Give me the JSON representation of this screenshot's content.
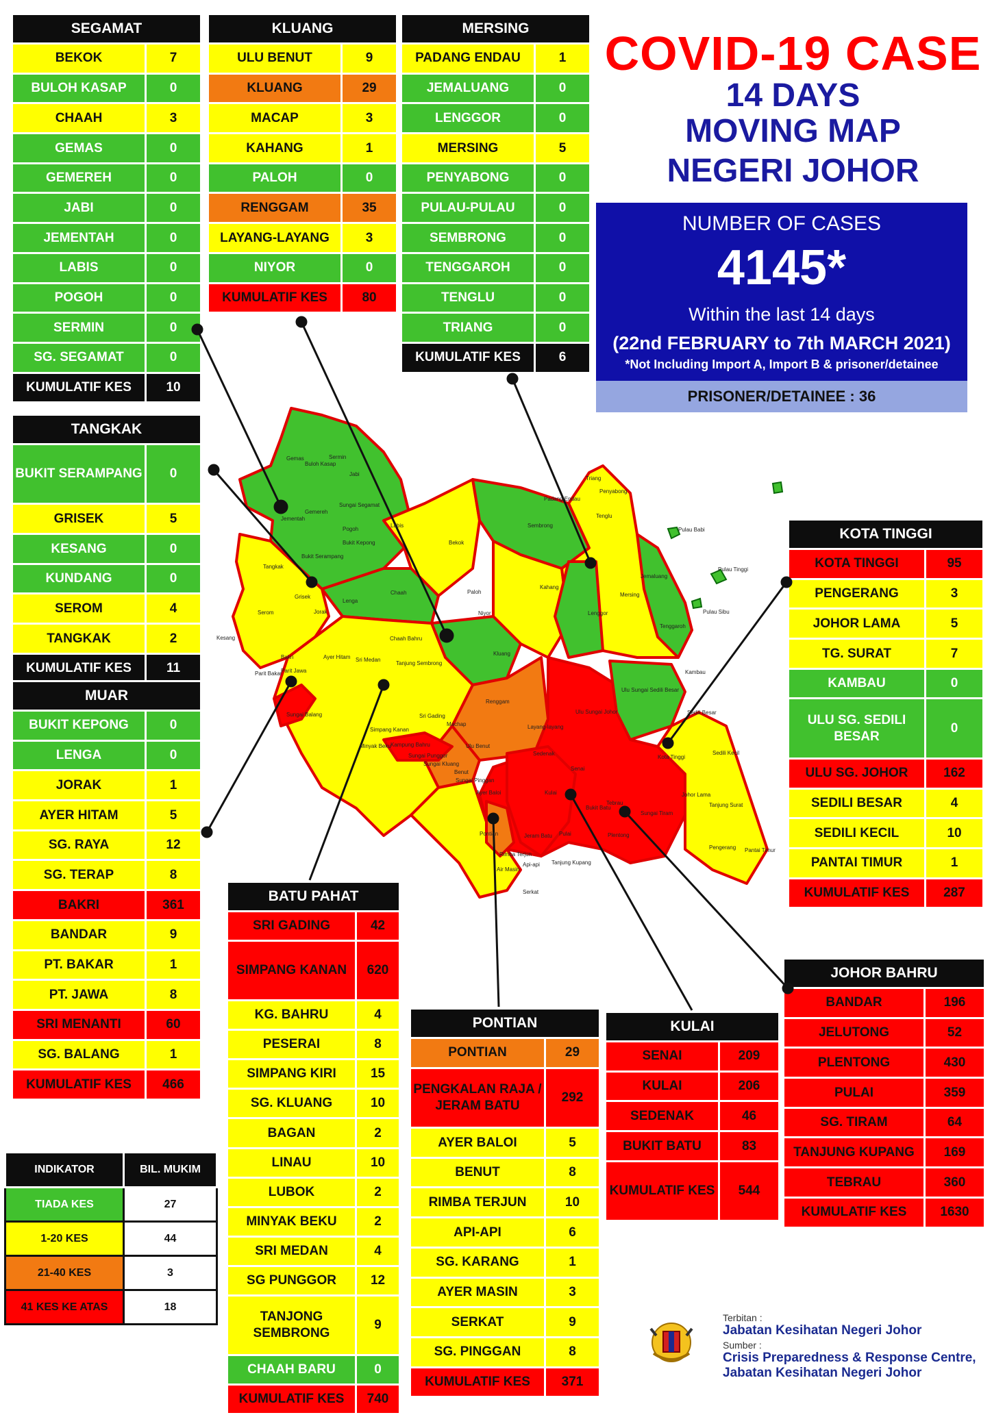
{
  "title": {
    "line1": "COVID-19 CASE",
    "line2": "14 DAYS",
    "line3": "MOVING MAP",
    "line4": "NEGERI JOHOR"
  },
  "summary": {
    "label": "NUMBER OF CASES",
    "total": "4145*",
    "period": "Within the last 14 days",
    "range": "(22nd FEBRUARY to 7th MARCH 2021)",
    "note": "*Not Including Import A, Import B & prisoner/detainee",
    "prisoner": "PRISONER/DETAINEE : 36"
  },
  "colors": {
    "green": "#41c12e",
    "yellow": "#ffff00",
    "orange": "#f27a12",
    "red": "#ff0000",
    "blue": "#1010a8"
  },
  "districts": {
    "segamat": {
      "name": "SEGAMAT",
      "rows": [
        {
          "n": "BEKOK",
          "v": "7",
          "c": "y"
        },
        {
          "n": "BULOH KASAP",
          "v": "0",
          "c": "g"
        },
        {
          "n": "CHAAH",
          "v": "3",
          "c": "y"
        },
        {
          "n": "GEMAS",
          "v": "0",
          "c": "g"
        },
        {
          "n": "GEMEREH",
          "v": "0",
          "c": "g"
        },
        {
          "n": "JABI",
          "v": "0",
          "c": "g"
        },
        {
          "n": "JEMENTAH",
          "v": "0",
          "c": "g"
        },
        {
          "n": "LABIS",
          "v": "0",
          "c": "g"
        },
        {
          "n": "POGOH",
          "v": "0",
          "c": "g"
        },
        {
          "n": "SERMIN",
          "v": "0",
          "c": "g"
        },
        {
          "n": "SG. SEGAMAT",
          "v": "0",
          "c": "g"
        },
        {
          "n": "KUMULATIF KES",
          "v": "10",
          "c": "k"
        }
      ]
    },
    "kluang": {
      "name": "KLUANG",
      "rows": [
        {
          "n": "ULU BENUT",
          "v": "9",
          "c": "y"
        },
        {
          "n": "KLUANG",
          "v": "29",
          "c": "o"
        },
        {
          "n": "MACAP",
          "v": "3",
          "c": "y"
        },
        {
          "n": "KAHANG",
          "v": "1",
          "c": "y"
        },
        {
          "n": "PALOH",
          "v": "0",
          "c": "g"
        },
        {
          "n": "RENGGAM",
          "v": "35",
          "c": "o"
        },
        {
          "n": "LAYANG-LAYANG",
          "v": "3",
          "c": "y"
        },
        {
          "n": "NIYOR",
          "v": "0",
          "c": "g"
        },
        {
          "n": "KUMULATIF KES",
          "v": "80",
          "c": "r"
        }
      ]
    },
    "mersing": {
      "name": "MERSING",
      "rows": [
        {
          "n": "PADANG ENDAU",
          "v": "1",
          "c": "y"
        },
        {
          "n": "JEMALUANG",
          "v": "0",
          "c": "g"
        },
        {
          "n": "LENGGOR",
          "v": "0",
          "c": "g"
        },
        {
          "n": "MERSING",
          "v": "5",
          "c": "y"
        },
        {
          "n": "PENYABONG",
          "v": "0",
          "c": "g"
        },
        {
          "n": "PULAU-PULAU",
          "v": "0",
          "c": "g"
        },
        {
          "n": "SEMBRONG",
          "v": "0",
          "c": "g"
        },
        {
          "n": "TENGGAROH",
          "v": "0",
          "c": "g"
        },
        {
          "n": "TENGLU",
          "v": "0",
          "c": "g"
        },
        {
          "n": "TRIANG",
          "v": "0",
          "c": "g"
        },
        {
          "n": "KUMULATIF KES",
          "v": "6",
          "c": "k"
        }
      ]
    },
    "tangkak": {
      "name": "TANGKAK",
      "rows": [
        {
          "n": "BUKIT SERAMPANG",
          "v": "0",
          "c": "g",
          "h": 2
        },
        {
          "n": "GRISEK",
          "v": "5",
          "c": "y"
        },
        {
          "n": "KESANG",
          "v": "0",
          "c": "g"
        },
        {
          "n": "KUNDANG",
          "v": "0",
          "c": "g"
        },
        {
          "n": "SEROM",
          "v": "4",
          "c": "y"
        },
        {
          "n": "TANGKAK",
          "v": "2",
          "c": "y"
        },
        {
          "n": "KUMULATIF KES",
          "v": "11",
          "c": "k"
        }
      ]
    },
    "muar": {
      "name": "MUAR",
      "rows": [
        {
          "n": "BUKIT KEPONG",
          "v": "0",
          "c": "g"
        },
        {
          "n": "LENGA",
          "v": "0",
          "c": "g"
        },
        {
          "n": "JORAK",
          "v": "1",
          "c": "y"
        },
        {
          "n": "AYER HITAM",
          "v": "5",
          "c": "y"
        },
        {
          "n": "SG. RAYA",
          "v": "12",
          "c": "y"
        },
        {
          "n": "SG. TERAP",
          "v": "8",
          "c": "y"
        },
        {
          "n": "BAKRI",
          "v": "361",
          "c": "r"
        },
        {
          "n": "BANDAR",
          "v": "9",
          "c": "y"
        },
        {
          "n": "PT. BAKAR",
          "v": "1",
          "c": "y"
        },
        {
          "n": "PT. JAWA",
          "v": "8",
          "c": "y"
        },
        {
          "n": "SRI MENANTI",
          "v": "60",
          "c": "r"
        },
        {
          "n": "SG. BALANG",
          "v": "1",
          "c": "y"
        },
        {
          "n": "KUMULATIF KES",
          "v": "466",
          "c": "r"
        }
      ]
    },
    "kota_tinggi": {
      "name": "KOTA TINGGI",
      "rows": [
        {
          "n": "KOTA TINGGI",
          "v": "95",
          "c": "r"
        },
        {
          "n": "PENGERANG",
          "v": "3",
          "c": "y"
        },
        {
          "n": "JOHOR LAMA",
          "v": "5",
          "c": "y"
        },
        {
          "n": "TG. SURAT",
          "v": "7",
          "c": "y"
        },
        {
          "n": "KAMBAU",
          "v": "0",
          "c": "g"
        },
        {
          "n": "ULU SG. SEDILI BESAR",
          "v": "0",
          "c": "g",
          "h": 2
        },
        {
          "n": "ULU  SG. JOHOR",
          "v": "162",
          "c": "r"
        },
        {
          "n": "SEDILI BESAR",
          "v": "4",
          "c": "y"
        },
        {
          "n": "SEDILI KECIL",
          "v": "10",
          "c": "y"
        },
        {
          "n": "PANTAI TIMUR",
          "v": "1",
          "c": "y"
        },
        {
          "n": "KUMULATIF KES",
          "v": "287",
          "c": "r"
        }
      ]
    },
    "batu_pahat": {
      "name": "BATU PAHAT",
      "rows": [
        {
          "n": "SRI GADING",
          "v": "42",
          "c": "r"
        },
        {
          "n": "SIMPANG KANAN",
          "v": "620",
          "c": "r",
          "h": 2
        },
        {
          "n": "KG. BAHRU",
          "v": "4",
          "c": "y"
        },
        {
          "n": "PESERAI",
          "v": "8",
          "c": "y"
        },
        {
          "n": "SIMPANG KIRI",
          "v": "15",
          "c": "y"
        },
        {
          "n": "SG. KLUANG",
          "v": "10",
          "c": "y"
        },
        {
          "n": "BAGAN",
          "v": "2",
          "c": "y"
        },
        {
          "n": "LINAU",
          "v": "10",
          "c": "y"
        },
        {
          "n": "LUBOK",
          "v": "2",
          "c": "y"
        },
        {
          "n": "MINYAK BEKU",
          "v": "2",
          "c": "y"
        },
        {
          "n": "SRI MEDAN",
          "v": "4",
          "c": "y"
        },
        {
          "n": "SG PUNGGOR",
          "v": "12",
          "c": "y"
        },
        {
          "n": "TANJONG SEMBRONG",
          "v": "9",
          "c": "y",
          "h": 2
        },
        {
          "n": "CHAAH BARU",
          "v": "0",
          "c": "g"
        },
        {
          "n": "KUMULATIF KES",
          "v": "740",
          "c": "r"
        }
      ]
    },
    "pontian": {
      "name": "PONTIAN",
      "rows": [
        {
          "n": "PONTIAN",
          "v": "29",
          "c": "o"
        },
        {
          "n": "PENGKALAN RAJA / JERAM BATU",
          "v": "292",
          "c": "r",
          "h": 2
        },
        {
          "n": "AYER BALOI",
          "v": "5",
          "c": "y"
        },
        {
          "n": "BENUT",
          "v": "8",
          "c": "y"
        },
        {
          "n": "RIMBA TERJUN",
          "v": "10",
          "c": "y"
        },
        {
          "n": "API-API",
          "v": "6",
          "c": "y"
        },
        {
          "n": "SG. KARANG",
          "v": "1",
          "c": "y"
        },
        {
          "n": "AYER MASIN",
          "v": "3",
          "c": "y"
        },
        {
          "n": "SERKAT",
          "v": "9",
          "c": "y"
        },
        {
          "n": "SG. PINGGAN",
          "v": "8",
          "c": "y"
        },
        {
          "n": "KUMULATIF KES",
          "v": "371",
          "c": "r"
        }
      ]
    },
    "kulai": {
      "name": "KULAI",
      "rows": [
        {
          "n": "SENAI",
          "v": "209",
          "c": "r"
        },
        {
          "n": "KULAI",
          "v": "206",
          "c": "r"
        },
        {
          "n": "SEDENAK",
          "v": "46",
          "c": "r"
        },
        {
          "n": "BUKIT BATU",
          "v": "83",
          "c": "r"
        },
        {
          "n": "KUMULATIF KES",
          "v": "544",
          "c": "r",
          "h": 2
        }
      ]
    },
    "johor_bahru": {
      "name": "JOHOR BAHRU",
      "rows": [
        {
          "n": "BANDAR",
          "v": "196",
          "c": "r"
        },
        {
          "n": "JELUTONG",
          "v": "52",
          "c": "r"
        },
        {
          "n": "PLENTONG",
          "v": "430",
          "c": "r"
        },
        {
          "n": "PULAI",
          "v": "359",
          "c": "r"
        },
        {
          "n": "SG. TIRAM",
          "v": "64",
          "c": "r"
        },
        {
          "n": "TANJUNG KUPANG",
          "v": "169",
          "c": "r"
        },
        {
          "n": "TEBRAU",
          "v": "360",
          "c": "r"
        },
        {
          "n": "KUMULATIF KES",
          "v": "1630",
          "c": "r"
        }
      ]
    }
  },
  "legend": {
    "header": [
      "INDIKATOR",
      "BIL. MUKIM"
    ],
    "rows": [
      {
        "n": "TIADA KES",
        "v": "27",
        "c": "g"
      },
      {
        "n": "1-20 KES",
        "v": "44",
        "c": "y"
      },
      {
        "n": "21-40 KES",
        "v": "3",
        "c": "o"
      },
      {
        "n": "41 KES KE ATAS",
        "v": "18",
        "c": "r"
      }
    ]
  },
  "map_labels": {
    "segamat": [
      "Gemas",
      "Buloh Kasap",
      "Sermin",
      "Jabi",
      "Sungai Segamat",
      "Jementah",
      "Gemereh",
      "Pogoh",
      "Labis",
      "Bekok",
      "Chaah"
    ],
    "tangkak": [
      "Bukit Serampang",
      "Tangkak",
      "Grisek",
      "Kesang",
      "Serom"
    ],
    "muar": [
      "Bukit Kepong",
      "Lenga",
      "Jorak",
      "Ayer Hitam",
      "Bakri",
      "Parit Jawa",
      "Parit Bakar",
      "Sungai Balang"
    ],
    "east": [
      "Padang Endau",
      "Triang",
      "Penyabong",
      "Tenglu",
      "Sembrong",
      "Pulau Babi",
      "Pulau Tinggi",
      "Pulau Sibu",
      "Jemaluang",
      "Mersing",
      "Tenggaroh",
      "Lenggor",
      "Kahang",
      "Paloh",
      "Niyor",
      "Kluang",
      "Renggam",
      "Chaah Bahru",
      "Sri Medan",
      "Tanjung Sembrong",
      "Ulu Sungai Sedili Besar",
      "Kambau",
      "Sedili Besar",
      "Sedili Kecil",
      "Ulu Sungai Johor",
      "Kota Tinggi",
      "Johor Lama",
      "Tanjung Surat",
      "Pengerang",
      "Pantai Timur"
    ],
    "south": [
      "Sri Gading",
      "Machap",
      "Ulu Benut",
      "Layang-layang",
      "Minyak Beku",
      "Kampung Bahru",
      "Simpang Kanan",
      "Sungai Punggor",
      "Sungai Kluang",
      "Benut",
      "Sungai Pinggan",
      "Ayer Baloi",
      "Pontian",
      "Jeram Batu",
      "Serkat",
      "Rimba Terjun",
      "Api-api",
      "Air Masin",
      "Sedenak",
      "Kulai",
      "Senai",
      "Pulai",
      "Plentong",
      "Tebrau",
      "Sungai Tiram",
      "Tanjung Kupang",
      "Bukit Batu"
    ]
  },
  "credits": {
    "published_label": "Terbitan :",
    "publisher": "Jabatan Kesihatan Negeri Johor",
    "source_label": "Sumber :",
    "source1": "Crisis Preparedness & Response Centre,",
    "source2": "Jabatan Kesihatan Negeri Johor"
  }
}
